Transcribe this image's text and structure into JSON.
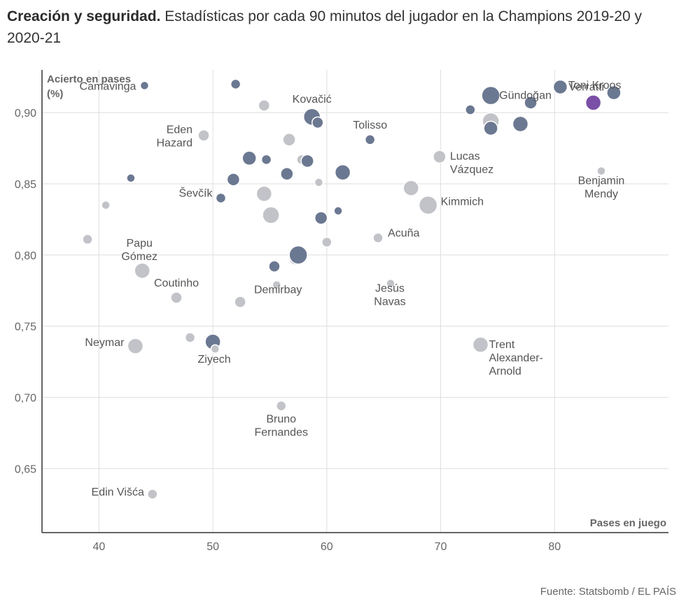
{
  "title": {
    "bold": "Creación y seguridad.",
    "rest": " Estadísticas por cada 90 minutos del jugador en la Champions 2019-20 y 2020-21"
  },
  "source": "Fuente: Statsbomb / EL PAÍS",
  "colors": {
    "background": "#ffffff",
    "dark_dot": "#6b7891",
    "light_dot": "#c2c3c8",
    "highlight_dot": "#7a4fa6",
    "grid": "#dedede",
    "axis": "#333333"
  },
  "chart_data": {
    "type": "scatter",
    "xlabel": "Pases en juego",
    "ylabel": [
      "Acierto en pases",
      "(%)"
    ],
    "xlim": [
      35,
      90
    ],
    "ylim": [
      0.605,
      0.93
    ],
    "xticks": [
      "40",
      "50",
      "60",
      "70",
      "80"
    ],
    "xtick_values": [
      40,
      50,
      60,
      70,
      80
    ],
    "yticks": [
      "0,65",
      "0,70",
      "0,75",
      "0,80",
      "0,85",
      "0,90"
    ],
    "ytick_values": [
      0.65,
      0.7,
      0.75,
      0.8,
      0.85,
      0.9
    ],
    "grid": true,
    "points": [
      {
        "x": 39.0,
        "y": 0.811,
        "s": 7,
        "g": "light"
      },
      {
        "x": 40.6,
        "y": 0.835,
        "s": 6,
        "g": "light"
      },
      {
        "x": 42.8,
        "y": 0.854,
        "s": 6,
        "g": "dark"
      },
      {
        "x": 44.0,
        "y": 0.919,
        "s": 6,
        "g": "dark",
        "label": [
          "Camavinga"
        ]
      },
      {
        "x": 43.8,
        "y": 0.789,
        "s": 11,
        "g": "light",
        "label": [
          "Papu",
          "Gómez"
        ]
      },
      {
        "x": 43.2,
        "y": 0.736,
        "s": 11,
        "g": "light",
        "label": [
          "Neymar"
        ]
      },
      {
        "x": 44.7,
        "y": 0.632,
        "s": 7,
        "g": "light",
        "label": [
          "Edin Višća"
        ]
      },
      {
        "x": 46.8,
        "y": 0.77,
        "s": 8,
        "g": "light",
        "label": [
          "Coutinho"
        ]
      },
      {
        "x": 48.0,
        "y": 0.742,
        "s": 7,
        "g": "light"
      },
      {
        "x": 49.2,
        "y": 0.884,
        "s": 8,
        "g": "light",
        "label": [
          "Eden",
          "Hazard"
        ]
      },
      {
        "x": 50.0,
        "y": 0.739,
        "s": 11,
        "g": "dark",
        "label": [
          "Ziyech"
        ]
      },
      {
        "x": 50.2,
        "y": 0.734,
        "s": 6,
        "g": "light"
      },
      {
        "x": 50.7,
        "y": 0.84,
        "s": 7,
        "g": "dark",
        "label": [
          "Ševčík"
        ]
      },
      {
        "x": 51.8,
        "y": 0.853,
        "s": 9,
        "g": "dark"
      },
      {
        "x": 52.0,
        "y": 0.92,
        "s": 7,
        "g": "dark"
      },
      {
        "x": 52.4,
        "y": 0.767,
        "s": 8,
        "g": "light"
      },
      {
        "x": 53.2,
        "y": 0.868,
        "s": 10,
        "g": "dark"
      },
      {
        "x": 54.5,
        "y": 0.905,
        "s": 8,
        "g": "light"
      },
      {
        "x": 54.5,
        "y": 0.843,
        "s": 11,
        "g": "light"
      },
      {
        "x": 54.7,
        "y": 0.867,
        "s": 7,
        "g": "dark"
      },
      {
        "x": 55.1,
        "y": 0.828,
        "s": 12,
        "g": "light"
      },
      {
        "x": 55.4,
        "y": 0.792,
        "s": 8,
        "g": "dark"
      },
      {
        "x": 55.6,
        "y": 0.779,
        "s": 6,
        "g": "light",
        "label": [
          "Demirbay"
        ]
      },
      {
        "x": 56.0,
        "y": 0.694,
        "s": 7,
        "g": "light",
        "label": [
          "Bruno",
          "Fernandes"
        ]
      },
      {
        "x": 56.5,
        "y": 0.857,
        "s": 9,
        "g": "dark"
      },
      {
        "x": 56.7,
        "y": 0.881,
        "s": 9,
        "g": "light"
      },
      {
        "x": 57.2,
        "y": 0.797,
        "s": 8,
        "g": "light"
      },
      {
        "x": 57.5,
        "y": 0.8,
        "s": 13,
        "g": "dark"
      },
      {
        "x": 57.8,
        "y": 0.867,
        "s": 7,
        "g": "light"
      },
      {
        "x": 58.3,
        "y": 0.866,
        "s": 9,
        "g": "dark"
      },
      {
        "x": 58.7,
        "y": 0.897,
        "s": 12,
        "g": "dark",
        "label": [
          "Kovačić"
        ]
      },
      {
        "x": 59.2,
        "y": 0.893,
        "s": 8,
        "g": "dark"
      },
      {
        "x": 59.3,
        "y": 0.851,
        "s": 6,
        "g": "light"
      },
      {
        "x": 59.5,
        "y": 0.826,
        "s": 9,
        "g": "dark"
      },
      {
        "x": 60.0,
        "y": 0.809,
        "s": 7,
        "g": "light"
      },
      {
        "x": 61.0,
        "y": 0.831,
        "s": 6,
        "g": "dark"
      },
      {
        "x": 61.4,
        "y": 0.858,
        "s": 11,
        "g": "dark"
      },
      {
        "x": 63.8,
        "y": 0.881,
        "s": 7,
        "g": "dark",
        "label": [
          "Tolisso"
        ]
      },
      {
        "x": 64.5,
        "y": 0.812,
        "s": 7,
        "g": "light",
        "label": [
          "Acuña"
        ]
      },
      {
        "x": 65.6,
        "y": 0.78,
        "s": 6,
        "g": "light",
        "label": [
          "Jesús",
          "Navas"
        ]
      },
      {
        "x": 67.4,
        "y": 0.847,
        "s": 11,
        "g": "light"
      },
      {
        "x": 68.9,
        "y": 0.835,
        "s": 13,
        "g": "light",
        "label": [
          "Kimmich"
        ]
      },
      {
        "x": 69.9,
        "y": 0.869,
        "s": 9,
        "g": "light",
        "label": [
          "Lucas",
          "Vázquez"
        ]
      },
      {
        "x": 72.6,
        "y": 0.902,
        "s": 7,
        "g": "dark"
      },
      {
        "x": 73.5,
        "y": 0.737,
        "s": 11,
        "g": "light",
        "label": [
          "Trent",
          "Alexander-",
          "Arnold"
        ]
      },
      {
        "x": 74.4,
        "y": 0.894,
        "s": 12,
        "g": "light"
      },
      {
        "x": 74.4,
        "y": 0.912,
        "s": 13,
        "g": "dark",
        "label": [
          "Gündoğan"
        ]
      },
      {
        "x": 74.4,
        "y": 0.889,
        "s": 10,
        "g": "dark"
      },
      {
        "x": 77.0,
        "y": 0.892,
        "s": 11,
        "g": "dark"
      },
      {
        "x": 77.9,
        "y": 0.907,
        "s": 9,
        "g": "dark"
      },
      {
        "x": 80.5,
        "y": 0.918,
        "s": 10,
        "g": "dark",
        "label": [
          "Verratti"
        ]
      },
      {
        "x": 83.4,
        "y": 0.907,
        "s": 11,
        "g": "highlight",
        "label": [
          "Toni Kroos"
        ]
      },
      {
        "x": 84.1,
        "y": 0.859,
        "s": 6,
        "g": "light",
        "label": [
          "Benjamin",
          "Mendy"
        ]
      },
      {
        "x": 85.2,
        "y": 0.914,
        "s": 10,
        "g": "dark"
      }
    ]
  }
}
